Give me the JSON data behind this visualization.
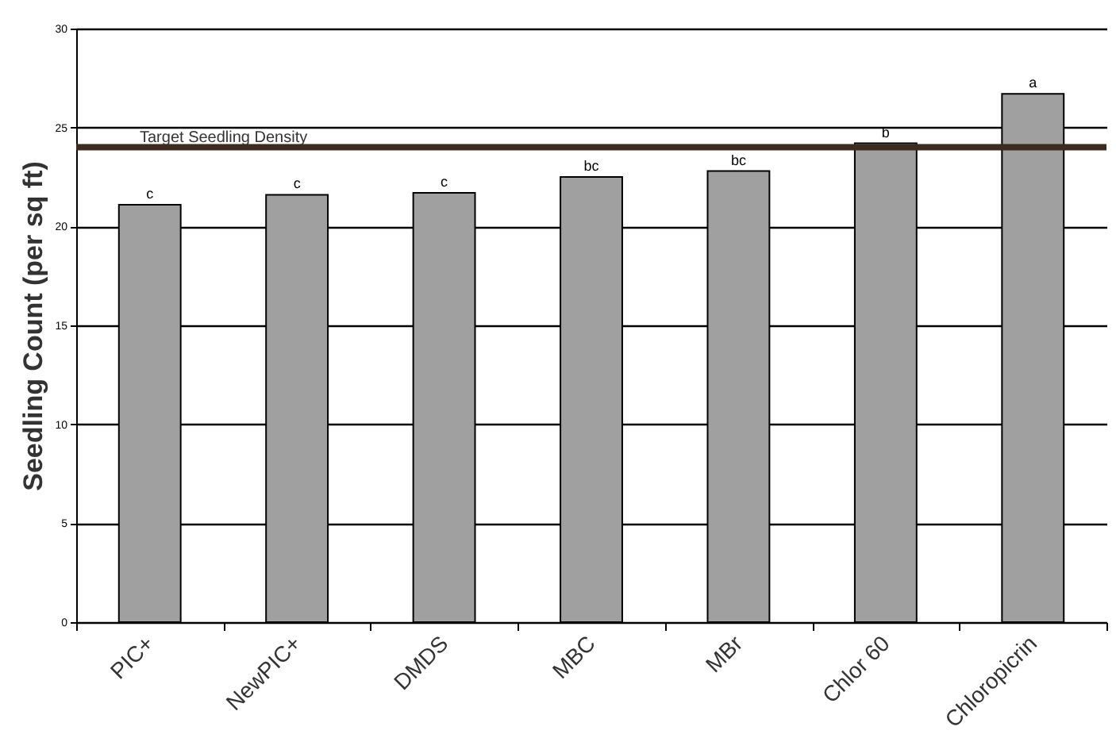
{
  "chart_data": {
    "type": "bar",
    "ylabel": "Seedling Count (per sq ft)",
    "categories": [
      "PIC+",
      "NewPIC+",
      "DMDS",
      "MBC",
      "MBr",
      "Chlor 60",
      "Chloropicrin"
    ],
    "values": [
      21.1,
      21.6,
      21.7,
      22.5,
      22.8,
      24.2,
      26.7
    ],
    "color": "#a0a0a0",
    "ylim": [
      0,
      30
    ],
    "yticks": [
      0,
      5,
      10,
      15,
      20,
      25,
      30
    ],
    "grid": "y",
    "ref_lines": [
      {
        "axis": "y",
        "value": 24,
        "label": "Target Seedling Density",
        "color": "#3d2b1f"
      }
    ],
    "annotations": [
      {
        "text": "c",
        "x": "PIC+",
        "y": 21.1
      },
      {
        "text": "c",
        "x": "NewPIC+",
        "y": 21.6
      },
      {
        "text": "c",
        "x": "DMDS",
        "y": 21.7
      },
      {
        "text": "bc",
        "x": "MBC",
        "y": 22.5
      },
      {
        "text": "bc",
        "x": "MBr",
        "y": 22.8
      },
      {
        "text": "b",
        "x": "Chlor 60",
        "y": 24.2
      },
      {
        "text": "a",
        "x": "Chloropicrin",
        "y": 26.7
      }
    ]
  }
}
